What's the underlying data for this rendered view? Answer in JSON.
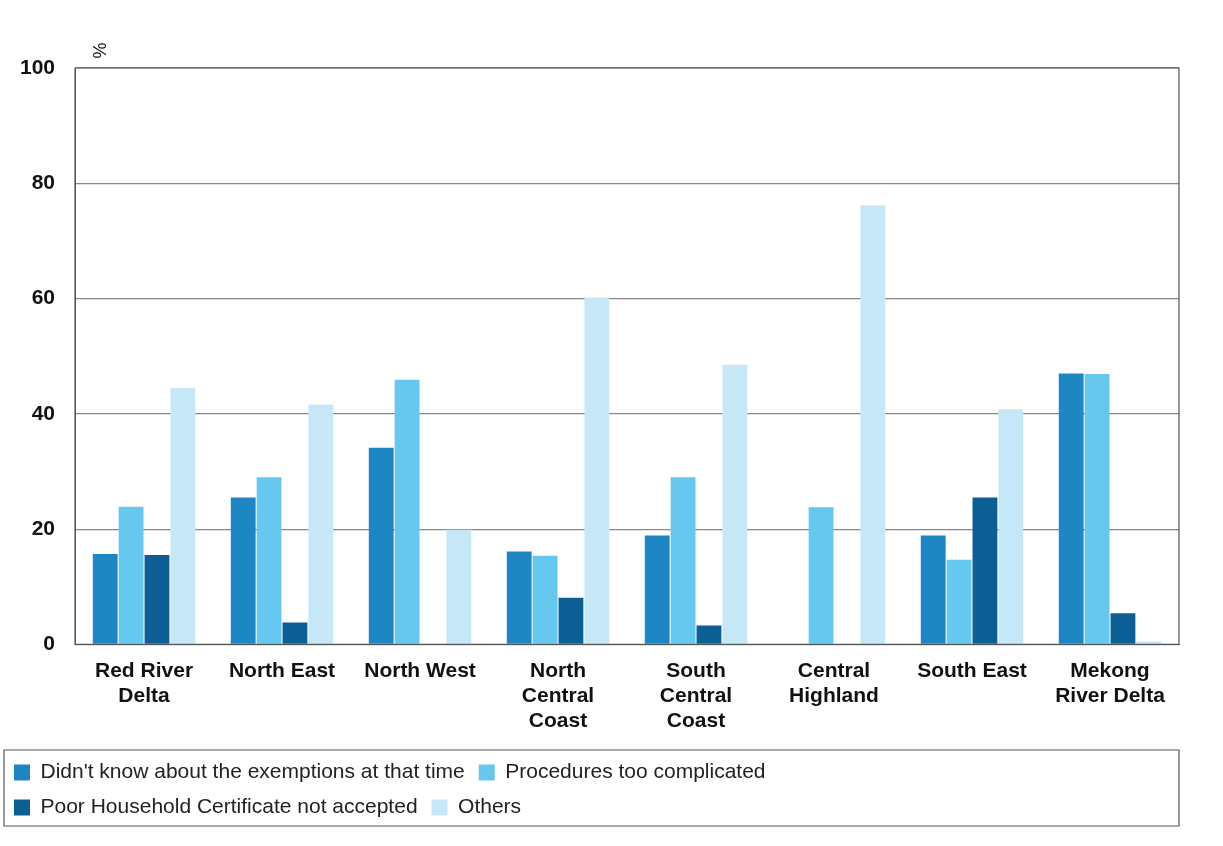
{
  "chart_data": {
    "type": "bar",
    "ylabel": "%",
    "categories": [
      "Red River Delta",
      "North East",
      "North West",
      "North Central Coast",
      "South Central Coast",
      "Central Highland",
      "South East",
      "Mekong River Delta"
    ],
    "series": [
      {
        "name": "Didn't know about the exemptions at that time",
        "color": "#1f86c4",
        "values": [
          15.7,
          25.5,
          34.1,
          16.1,
          18.9,
          null,
          18.9,
          47.0
        ]
      },
      {
        "name": "Procedures too complicated",
        "color": "#66c7ef",
        "values": [
          23.9,
          29.0,
          45.9,
          15.4,
          29.0,
          23.8,
          14.7,
          46.9
        ]
      },
      {
        "name": "Poor Household Certificate not accepted",
        "color": "#0b5f94",
        "values": [
          15.5,
          3.8,
          null,
          8.1,
          3.3,
          null,
          25.5,
          5.4
        ]
      },
      {
        "name": "Others",
        "color": "#c6e7f6",
        "values": [
          44.5,
          41.6,
          19.9,
          60.2,
          48.5,
          76.2,
          40.8,
          0.5
        ]
      }
    ],
    "ylim": [
      0,
      100
    ],
    "yticks": [
      0,
      20,
      40,
      60,
      80,
      100
    ],
    "grid": "y",
    "legend": "bottom"
  }
}
